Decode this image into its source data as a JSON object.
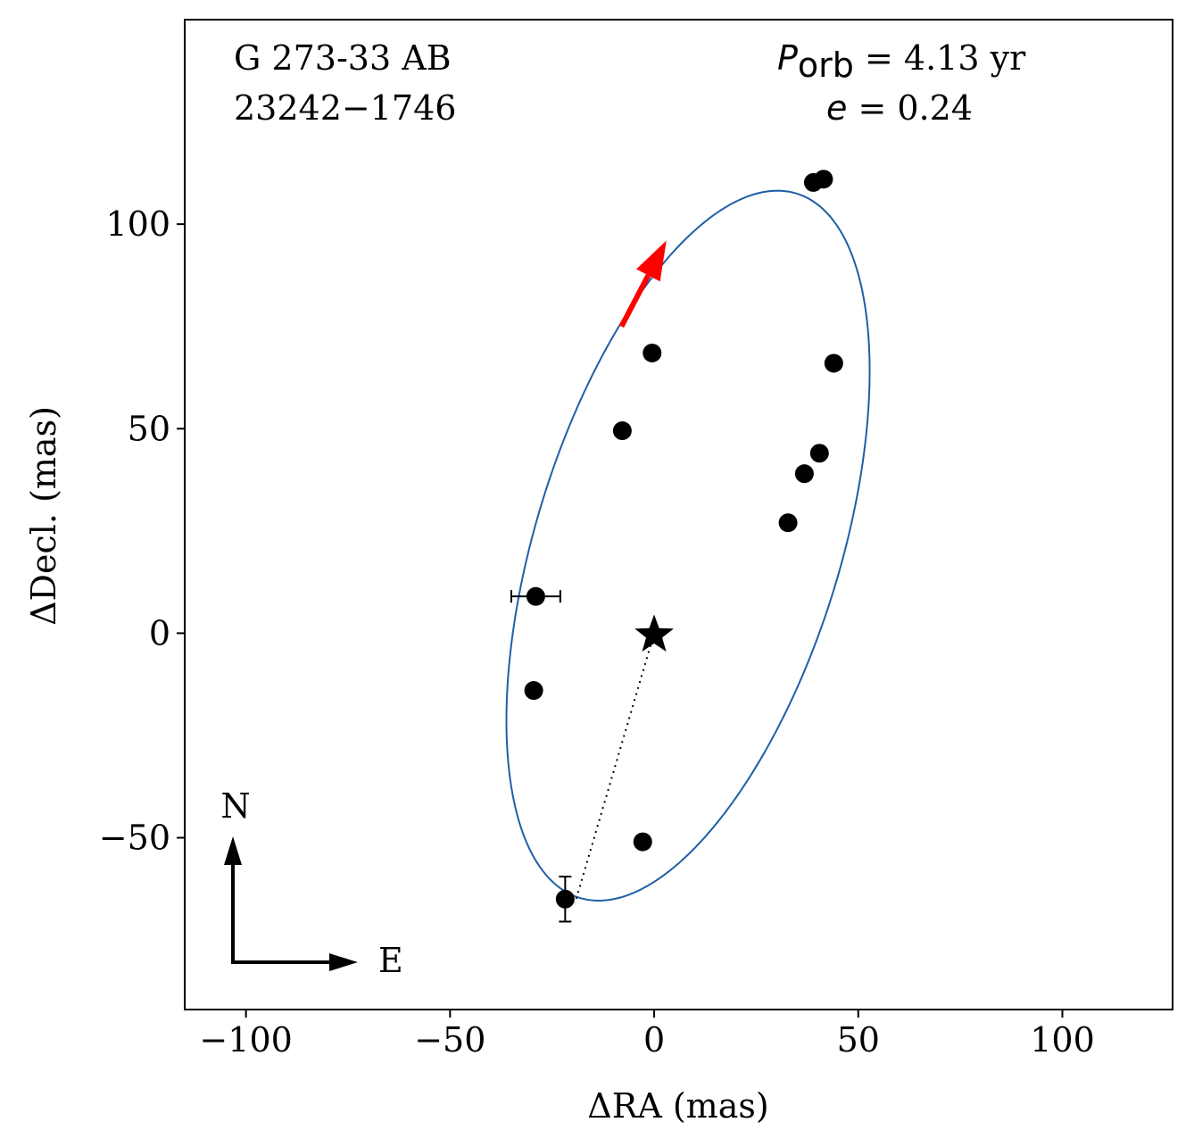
{
  "chart_data": {
    "type": "scatter",
    "title": "",
    "xlabel": "ΔRA  (mas)",
    "ylabel": "ΔDecl.  (mas)",
    "xlim": [
      -115,
      127
    ],
    "ylim": [
      -92,
      150
    ],
    "x_ticks": [
      -100,
      -50,
      0,
      50,
      100
    ],
    "y_ticks": [
      -50,
      0,
      50,
      100
    ],
    "x_tick_labels": [
      "−100",
      "−50",
      "0",
      "50",
      "100"
    ],
    "y_tick_labels": [
      "−50",
      "0",
      "50",
      "100"
    ],
    "grid": false,
    "annotations": {
      "object_name": "G 273-33 AB",
      "wds_id": "23242−1746",
      "period_symbol": "P",
      "period_subscript": "orb",
      "period_text": " =  4.13 yr",
      "ecc_symbol": "e",
      "ecc_text": " = 0.24",
      "north_label": "N",
      "east_label": "E"
    },
    "primary_star": {
      "x": 0,
      "y": 0
    },
    "orbit": {
      "color": "#1f5fa6",
      "center": [
        8.3,
        21.4
      ],
      "semi_axes_xy": [
        37.3,
        90.1
      ],
      "tilt_deg": 17.2,
      "periastron_point": [
        -19.4,
        -66.0
      ]
    },
    "direction_arrow": {
      "color": "#ff0000",
      "from": [
        -8,
        75
      ],
      "to": [
        3,
        96
      ]
    },
    "series": [
      {
        "name": "measurements",
        "color": "#000000",
        "points": [
          {
            "x": 41.5,
            "y": 111.0,
            "xerr": 0,
            "yerr": 0
          },
          {
            "x": 39.0,
            "y": 110.2,
            "xerr": 0,
            "yerr": 0
          },
          {
            "x": -0.5,
            "y": 68.5,
            "xerr": 0,
            "yerr": 0
          },
          {
            "x": 44.0,
            "y": 66.0,
            "xerr": 0,
            "yerr": 0
          },
          {
            "x": -7.8,
            "y": 49.5,
            "xerr": 0,
            "yerr": 0
          },
          {
            "x": 40.5,
            "y": 44.0,
            "xerr": 0,
            "yerr": 0
          },
          {
            "x": 36.8,
            "y": 39.0,
            "xerr": 0,
            "yerr": 0
          },
          {
            "x": 32.8,
            "y": 27.0,
            "xerr": 0,
            "yerr": 0
          },
          {
            "x": -29.0,
            "y": 9.0,
            "xerr": 6.0,
            "yerr": 0
          },
          {
            "x": -29.5,
            "y": -14.0,
            "xerr": 0,
            "yerr": 0
          },
          {
            "x": -2.8,
            "y": -51.0,
            "xerr": 0,
            "yerr": 0
          },
          {
            "x": -21.8,
            "y": -65.0,
            "xerr": 0,
            "yerr": 5.5
          }
        ]
      }
    ]
  }
}
